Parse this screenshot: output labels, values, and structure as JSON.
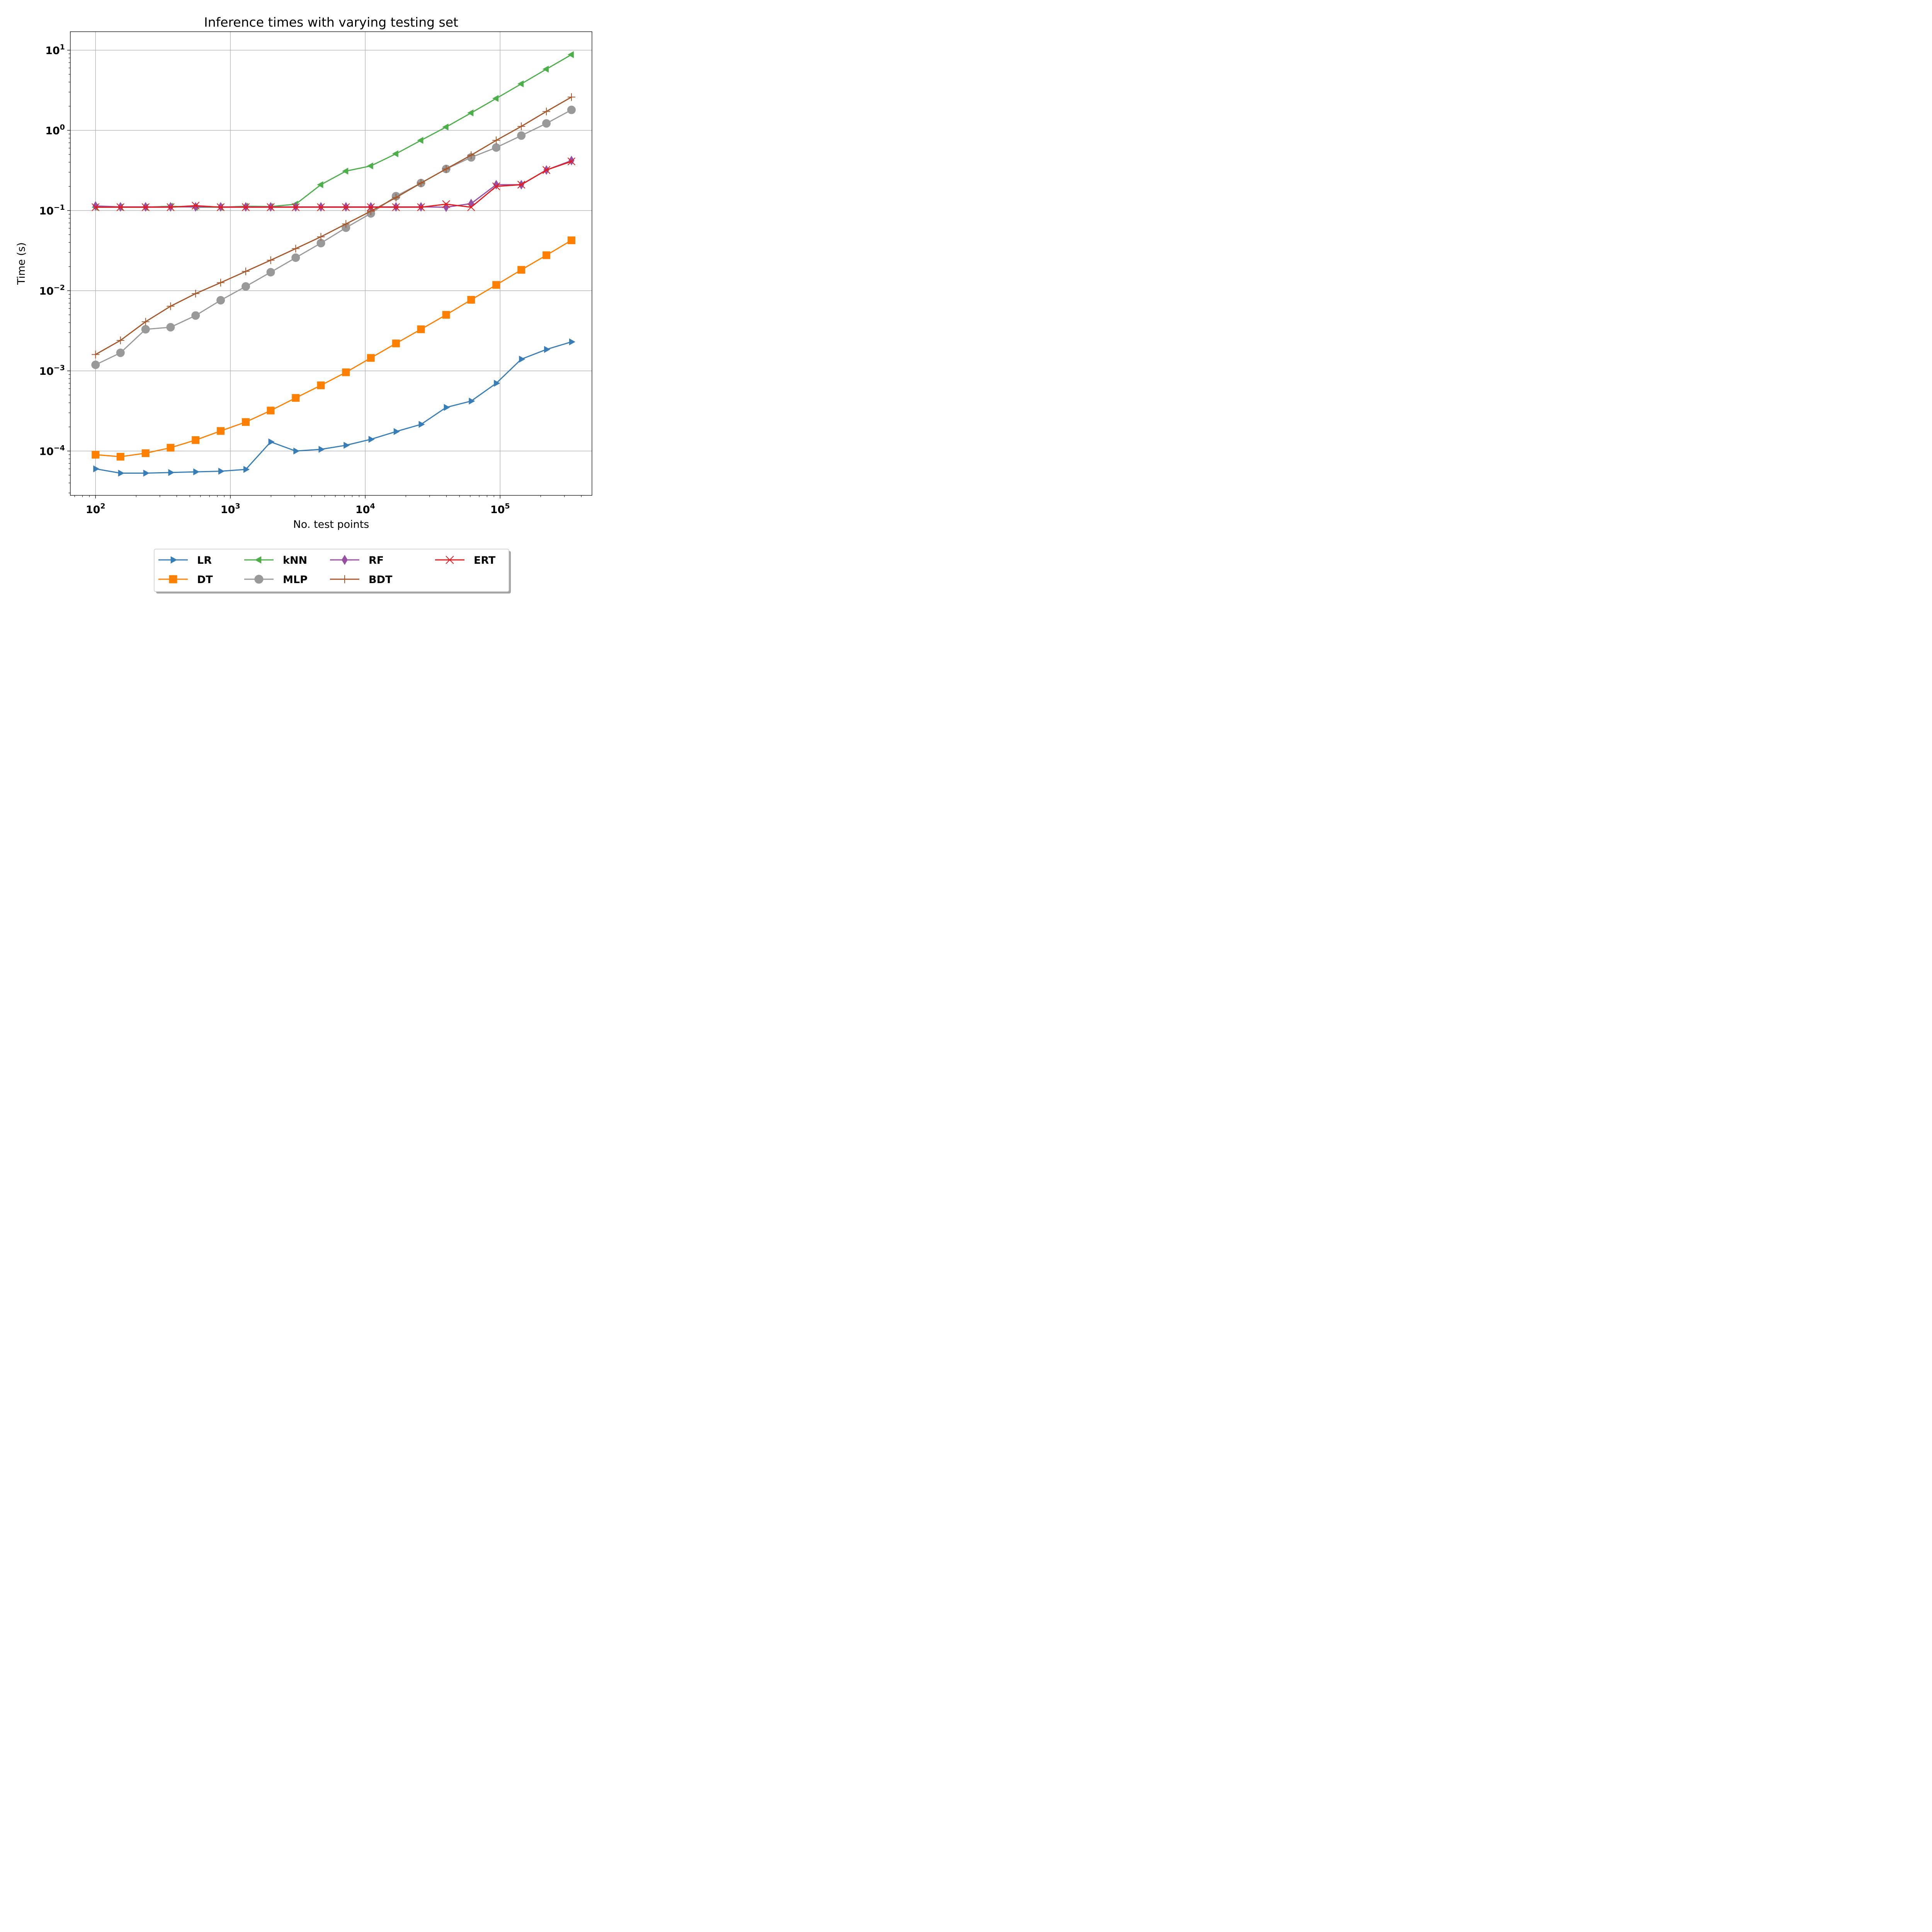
{
  "chart_data": {
    "type": "line",
    "title": "Inference times with varying testing set",
    "xlabel": "No. test points",
    "ylabel": "Time (s)",
    "xscale": "log",
    "yscale": "log",
    "xlim": [
      65,
      480000
    ],
    "ylim": [
      2.8e-05,
      17
    ],
    "grid": true,
    "legend_position": "below plot, centered, 4 columns",
    "x_ticks": [
      {
        "value": 100,
        "base": "10",
        "exp": "2"
      },
      {
        "value": 1000,
        "base": "10",
        "exp": "3"
      },
      {
        "value": 10000,
        "base": "10",
        "exp": "4"
      },
      {
        "value": 100000,
        "base": "10",
        "exp": "5"
      }
    ],
    "y_ticks": [
      {
        "value": 0.0001,
        "base": "10",
        "exp": "−4"
      },
      {
        "value": 0.001,
        "base": "10",
        "exp": "−3"
      },
      {
        "value": 0.01,
        "base": "10",
        "exp": "−2"
      },
      {
        "value": 0.1,
        "base": "10",
        "exp": "−1"
      },
      {
        "value": 1,
        "base": "10",
        "exp": "0"
      },
      {
        "value": 10,
        "base": "10",
        "exp": "1"
      }
    ],
    "x": [
      100,
      153,
      235,
      360,
      552,
      847,
      1300,
      1990,
      3050,
      4690,
      7190,
      11000,
      16900,
      25900,
      39800,
      61000,
      93600,
      143700,
      220500,
      338300
    ],
    "series": [
      {
        "name": "LR",
        "color": "#377eb8",
        "marker": "triangle-right",
        "values": [
          6e-05,
          5.3e-05,
          5.3e-05,
          5.4e-05,
          5.5e-05,
          5.6e-05,
          5.9e-05,
          0.00013,
          0.0001,
          0.000105,
          0.000118,
          0.00014,
          0.000175,
          0.000215,
          0.00035,
          0.00042,
          0.0007,
          0.0014,
          0.00185,
          0.0023
        ]
      },
      {
        "name": "DT",
        "color": "#ff7f00",
        "marker": "square",
        "values": [
          9e-05,
          8.5e-05,
          9.4e-05,
          0.00011,
          0.000137,
          0.000178,
          0.00023,
          0.00032,
          0.00046,
          0.00066,
          0.00096,
          0.00145,
          0.0022,
          0.0033,
          0.005,
          0.0077,
          0.0118,
          0.0182,
          0.0277,
          0.0425
        ]
      },
      {
        "name": "kNN",
        "color": "#4daf4a",
        "marker": "triangle-left",
        "values": [
          0.11,
          0.11,
          0.11,
          0.113,
          0.11,
          0.11,
          0.113,
          0.112,
          0.12,
          0.21,
          0.31,
          0.36,
          0.51,
          0.75,
          1.1,
          1.65,
          2.5,
          3.8,
          5.8,
          8.8
        ]
      },
      {
        "name": "MLP",
        "color": "#999999",
        "marker": "circle",
        "values": [
          0.00119,
          0.00168,
          0.0033,
          0.0035,
          0.0049,
          0.0076,
          0.0113,
          0.017,
          0.0258,
          0.0392,
          0.061,
          0.092,
          0.151,
          0.22,
          0.33,
          0.46,
          0.61,
          0.86,
          1.22,
          1.8
        ]
      },
      {
        "name": "RF",
        "color": "#984ea3",
        "marker": "thin-diamond",
        "values": [
          0.114,
          0.111,
          0.111,
          0.111,
          0.111,
          0.111,
          0.111,
          0.111,
          0.111,
          0.111,
          0.111,
          0.111,
          0.111,
          0.111,
          0.11,
          0.122,
          0.21,
          0.21,
          0.32,
          0.42
        ]
      },
      {
        "name": "BDT",
        "color": "#a65628",
        "marker": "plus",
        "values": [
          0.0016,
          0.0024,
          0.0041,
          0.0064,
          0.0092,
          0.0126,
          0.0174,
          0.024,
          0.0335,
          0.047,
          0.068,
          0.098,
          0.145,
          0.22,
          0.33,
          0.49,
          0.75,
          1.12,
          1.72,
          2.6
        ]
      },
      {
        "name": "ERT",
        "color": "#e41a1c",
        "marker": "x",
        "values": [
          0.11,
          0.11,
          0.11,
          0.11,
          0.115,
          0.11,
          0.11,
          0.11,
          0.11,
          0.11,
          0.11,
          0.11,
          0.11,
          0.11,
          0.12,
          0.11,
          0.2,
          0.21,
          0.32,
          0.41
        ]
      }
    ]
  }
}
